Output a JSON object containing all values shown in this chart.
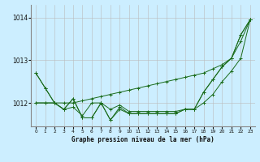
{
  "title": "Graphe pression niveau de la mer (hPa)",
  "bg_color": "#cceeff",
  "grid_color": "#bbbbbb",
  "line_color": "#1a6b1a",
  "xlim": [
    -0.5,
    23.5
  ],
  "ylim": [
    1011.45,
    1014.3
  ],
  "yticks": [
    1012,
    1013,
    1014
  ],
  "xticks": [
    0,
    1,
    2,
    3,
    4,
    5,
    6,
    7,
    8,
    9,
    10,
    11,
    12,
    13,
    14,
    15,
    16,
    17,
    18,
    19,
    20,
    21,
    22,
    23
  ],
  "series": [
    [
      1012.7,
      1012.35,
      1012.0,
      1012.0,
      1012.0,
      1012.05,
      1012.1,
      1012.15,
      1012.2,
      1012.25,
      1012.3,
      1012.35,
      1012.4,
      1012.45,
      1012.5,
      1012.55,
      1012.6,
      1012.65,
      1012.7,
      1012.8,
      1012.9,
      1013.05,
      1013.45,
      1013.95
    ],
    [
      1012.0,
      1012.0,
      1012.0,
      1011.85,
      1011.9,
      1011.7,
      1012.0,
      1012.0,
      1011.85,
      1011.95,
      1011.8,
      1011.8,
      1011.8,
      1011.8,
      1011.8,
      1011.8,
      1011.85,
      1011.85,
      1012.0,
      1012.2,
      1012.5,
      1012.75,
      1013.05,
      1013.95
    ],
    [
      1012.7,
      1012.35,
      1012.0,
      1011.85,
      1012.1,
      1011.65,
      1011.65,
      1012.0,
      1011.6,
      1011.9,
      1011.75,
      1011.75,
      1011.75,
      1011.75,
      1011.75,
      1011.75,
      1011.85,
      1011.85,
      1012.25,
      1012.55,
      1012.85,
      1013.05,
      1013.6,
      1013.95
    ],
    [
      1012.0,
      1012.0,
      1012.0,
      1011.85,
      1012.1,
      1011.65,
      1011.65,
      1012.0,
      1011.6,
      1011.85,
      1011.75,
      1011.75,
      1011.75,
      1011.75,
      1011.75,
      1011.75,
      1011.85,
      1011.85,
      1012.25,
      1012.55,
      1012.85,
      1013.05,
      1013.6,
      1013.95
    ]
  ]
}
